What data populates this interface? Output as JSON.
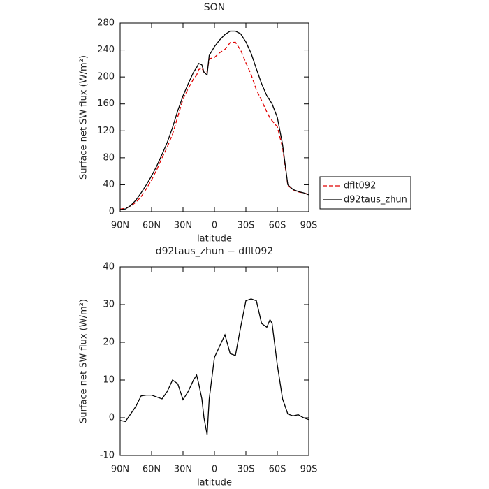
{
  "chart_data": [
    {
      "type": "line",
      "title": "SON",
      "xlabel": "latitude",
      "ylabel": "Surface net SW flux (W/m²)",
      "x": [
        90,
        85,
        80,
        75,
        70,
        65,
        60,
        55,
        50,
        45,
        40,
        35,
        30,
        25,
        20,
        17,
        15,
        12,
        10,
        7,
        5,
        0,
        -5,
        -10,
        -15,
        -20,
        -25,
        -30,
        -35,
        -40,
        -45,
        -50,
        -53,
        -55,
        -60,
        -65,
        -70,
        -75,
        -80,
        -85,
        -90
      ],
      "series": [
        {
          "name": "dflt092",
          "color": "#e00000",
          "dash": "dashed",
          "values": [
            3.7,
            5,
            8,
            14,
            22.2,
            34,
            47,
            62.5,
            80,
            96,
            115,
            141,
            167.2,
            183,
            197,
            202.7,
            211,
            213,
            207,
            207.5,
            227,
            229,
            236,
            241,
            251,
            251.5,
            240,
            221,
            203.5,
            181,
            165,
            148,
            139,
            135,
            126,
            95,
            39,
            32.5,
            29.2,
            28,
            25.5
          ]
        },
        {
          "name": "d92taus_zhun",
          "color": "#000000",
          "dash": "solid",
          "values": [
            3,
            4,
            9,
            17,
            28,
            40,
            53,
            68,
            85,
            103,
            125,
            150,
            172,
            190,
            207,
            214,
            220,
            218,
            207,
            203,
            232,
            245,
            255,
            263,
            268,
            268,
            264,
            252,
            235,
            212,
            190,
            172,
            165,
            160,
            140,
            100,
            40,
            33,
            30,
            28,
            25
          ]
        }
      ],
      "xlim": [
        90,
        -90
      ],
      "xticks": [
        {
          "value": 90,
          "label": "90N"
        },
        {
          "value": 60,
          "label": "60N"
        },
        {
          "value": 30,
          "label": "30N"
        },
        0,
        {
          "value": -30,
          "label": "30S"
        },
        {
          "value": -60,
          "label": "60S"
        },
        {
          "value": -90,
          "label": "90S"
        }
      ],
      "ylim": [
        0,
        280
      ],
      "yticks": [
        0,
        40,
        80,
        120,
        160,
        200,
        240,
        280
      ],
      "legend": "outside-right"
    },
    {
      "type": "line",
      "title": "d92taus_zhun − dflt092",
      "xlabel": "latitude",
      "ylabel": "Surface net SW flux (W/m²)",
      "x": [
        90,
        85,
        80,
        75,
        70,
        65,
        60,
        55,
        50,
        45,
        40,
        35,
        30,
        25,
        20,
        17,
        15,
        12,
        10,
        7,
        5,
        0,
        -5,
        -10,
        -15,
        -20,
        -25,
        -30,
        -35,
        -40,
        -45,
        -50,
        -53,
        -55,
        -60,
        -65,
        -70,
        -75,
        -80,
        -85,
        -90
      ],
      "series": [
        {
          "color": "#000000",
          "dash": "solid",
          "values": [
            -0.7,
            -1,
            1,
            3,
            5.8,
            6,
            6,
            5.5,
            5,
            7,
            10,
            9,
            4.8,
            7,
            10,
            11.3,
            9,
            5,
            0,
            -4.5,
            5,
            16,
            19,
            22,
            17,
            16.5,
            24,
            31,
            31.5,
            31,
            25,
            24,
            26,
            25,
            14,
            5,
            1,
            0.5,
            0.8,
            0,
            -0.5
          ]
        }
      ],
      "xlim": [
        90,
        -90
      ],
      "xticks": [
        {
          "value": 90,
          "label": "90N"
        },
        {
          "value": 60,
          "label": "60N"
        },
        {
          "value": 30,
          "label": "30N"
        },
        0,
        {
          "value": -30,
          "label": "30S"
        },
        {
          "value": -60,
          "label": "60S"
        },
        {
          "value": -90,
          "label": "90S"
        }
      ],
      "ylim": [
        -10,
        40
      ],
      "yticks": [
        -10,
        0,
        10,
        20,
        30,
        40
      ]
    }
  ]
}
